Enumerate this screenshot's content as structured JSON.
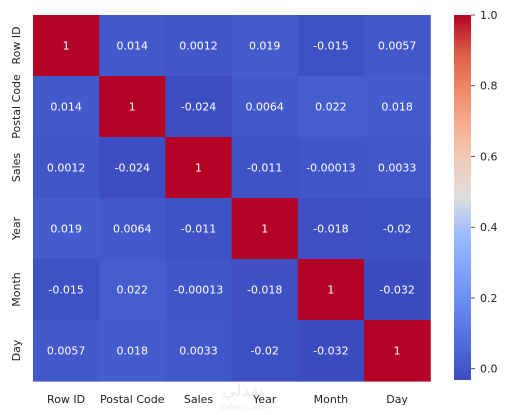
{
  "chart_data": {
    "type": "heatmap",
    "title": "",
    "xlabel": "",
    "ylabel": "",
    "x_categories": [
      "Row ID",
      "Postal Code",
      "Sales",
      "Year",
      "Month",
      "Day"
    ],
    "y_categories": [
      "Row ID",
      "Postal Code",
      "Sales",
      "Year",
      "Month",
      "Day"
    ],
    "values": [
      [
        1,
        0.014,
        0.0012,
        0.019,
        -0.015,
        0.0057
      ],
      [
        0.014,
        1,
        -0.024,
        0.0064,
        0.022,
        0.018
      ],
      [
        0.0012,
        -0.024,
        1,
        -0.011,
        -0.00013,
        0.0033
      ],
      [
        0.019,
        0.0064,
        -0.011,
        1,
        -0.018,
        -0.02
      ],
      [
        -0.015,
        0.022,
        -0.00013,
        -0.018,
        1,
        -0.032
      ],
      [
        0.0057,
        0.018,
        0.0033,
        -0.02,
        -0.032,
        1
      ]
    ],
    "value_labels": [
      [
        "1",
        "0.014",
        "0.0012",
        "0.019",
        "-0.015",
        "0.0057"
      ],
      [
        "0.014",
        "1",
        "-0.024",
        "0.0064",
        "0.022",
        "0.018"
      ],
      [
        "0.0012",
        "-0.024",
        "1",
        "-0.011",
        "-0.00013",
        "0.0033"
      ],
      [
        "0.019",
        "0.0064",
        "-0.011",
        "1",
        "-0.018",
        "-0.02"
      ],
      [
        "-0.015",
        "0.022",
        "-0.00013",
        "-0.018",
        "1",
        "-0.032"
      ],
      [
        "0.0057",
        "0.018",
        "0.0033",
        "-0.02",
        "-0.032",
        "1"
      ]
    ],
    "colormap": "coolwarm",
    "color_range": [
      -0.032,
      1
    ],
    "colorbar_ticks": [
      0.0,
      0.2,
      0.4,
      0.6,
      0.8,
      1.0
    ],
    "colorbar_tick_labels": [
      "0.0",
      "0.2",
      "0.4",
      "0.6",
      "0.8",
      "1.0"
    ],
    "grid": false,
    "colors": {
      "low": "#3b4cc0",
      "mid": "#dddddd",
      "high": "#b40426",
      "text_light": "#ffffff"
    }
  },
  "watermark": {
    "text_ar": "نفذلي",
    "text_en": "nafezly.com"
  }
}
